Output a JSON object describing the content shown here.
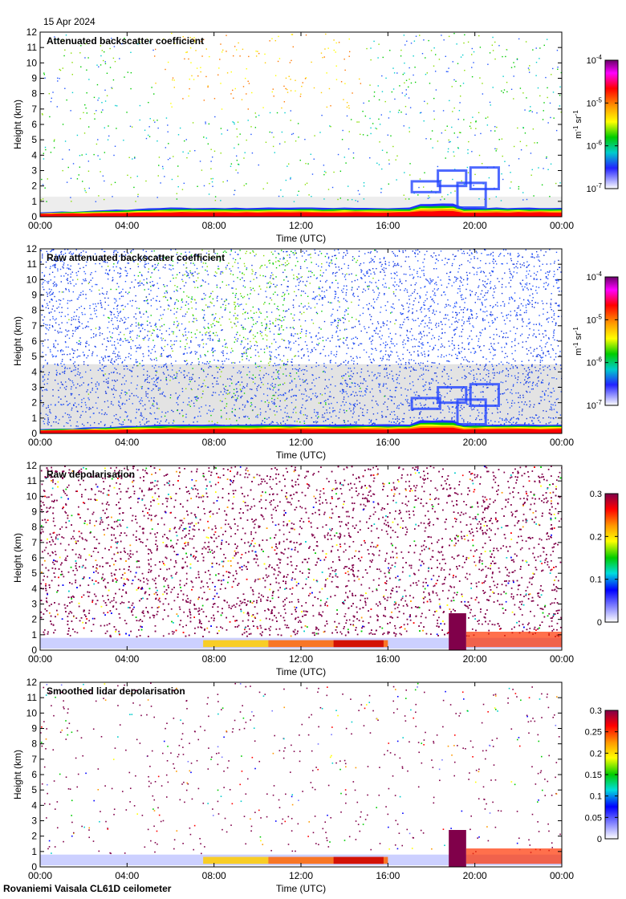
{
  "date": "15 Apr 2024",
  "footer": "Rovaniemi Vaisala CL61D ceilometer",
  "chart_data": [
    {
      "type": "heatmap",
      "title": "Attenuated backscatter coefficient",
      "xlabel": "Time (UTC)",
      "ylabel": "Height (km)",
      "xticks": [
        "00:00",
        "04:00",
        "08:00",
        "12:00",
        "16:00",
        "20:00",
        "00:00"
      ],
      "xlim": [
        0,
        24
      ],
      "ylim": [
        0,
        12
      ],
      "yticks": [
        0,
        1,
        2,
        3,
        4,
        5,
        6,
        7,
        8,
        9,
        10,
        11,
        12
      ],
      "colorbar": {
        "scale": "log",
        "unit_main": "m",
        "unit_sup1": "-1",
        "unit_mid": " sr",
        "unit_sup2": "-1",
        "ticks": [
          {
            "base": "10",
            "exp": "-4",
            "value": -4
          },
          {
            "base": "10",
            "exp": "-5",
            "value": -5
          },
          {
            "base": "10",
            "exp": "-6",
            "value": -6
          },
          {
            "base": "10",
            "exp": "-7",
            "value": -7
          }
        ],
        "range": [
          -7,
          -4
        ]
      }
    },
    {
      "type": "heatmap",
      "title": "Raw attenuated backscatter coefficient",
      "xlabel": "Time (UTC)",
      "ylabel": "Height (km)",
      "xticks": [
        "00:00",
        "04:00",
        "08:00",
        "12:00",
        "16:00",
        "20:00",
        "00:00"
      ],
      "xlim": [
        0,
        24
      ],
      "ylim": [
        0,
        12
      ],
      "yticks": [
        0,
        1,
        2,
        3,
        4,
        5,
        6,
        7,
        8,
        9,
        10,
        11,
        12
      ],
      "colorbar": {
        "scale": "log",
        "unit_main": "m",
        "unit_sup1": "-1",
        "unit_mid": " sr",
        "unit_sup2": "-1",
        "ticks": [
          {
            "base": "10",
            "exp": "-4",
            "value": -4
          },
          {
            "base": "10",
            "exp": "-5",
            "value": -5
          },
          {
            "base": "10",
            "exp": "-6",
            "value": -6
          },
          {
            "base": "10",
            "exp": "-7",
            "value": -7
          }
        ],
        "range": [
          -7,
          -4
        ]
      }
    },
    {
      "type": "heatmap",
      "title": "Raw depolarisation",
      "xlabel": "Time (UTC)",
      "ylabel": "Height (km)",
      "xticks": [
        "00:00",
        "04:00",
        "08:00",
        "12:00",
        "16:00",
        "20:00",
        "00:00"
      ],
      "xlim": [
        0,
        24
      ],
      "ylim": [
        0,
        12
      ],
      "yticks": [
        0,
        1,
        2,
        3,
        4,
        5,
        6,
        7,
        8,
        9,
        10,
        11,
        12
      ],
      "colorbar": {
        "scale": "linear",
        "ticks": [
          {
            "label": "0.3",
            "value": 0.3
          },
          {
            "label": "0.2",
            "value": 0.2
          },
          {
            "label": "0.1",
            "value": 0.1
          },
          {
            "label": "0",
            "value": 0
          }
        ],
        "range": [
          0,
          0.3
        ]
      }
    },
    {
      "type": "heatmap",
      "title": "Smoothed lidar depolarisation",
      "xlabel": "Time (UTC)",
      "ylabel": "Height (km)",
      "xticks": [
        "00:00",
        "04:00",
        "08:00",
        "12:00",
        "16:00",
        "20:00",
        "00:00"
      ],
      "xlim": [
        0,
        24
      ],
      "ylim": [
        0,
        12
      ],
      "yticks": [
        0,
        1,
        2,
        3,
        4,
        5,
        6,
        7,
        8,
        9,
        10,
        11,
        12
      ],
      "colorbar": {
        "scale": "linear",
        "ticks": [
          {
            "label": "0.3",
            "value": 0.3
          },
          {
            "label": "0.25",
            "value": 0.25
          },
          {
            "label": "0.2",
            "value": 0.2
          },
          {
            "label": "0.15",
            "value": 0.15
          },
          {
            "label": "0.1",
            "value": 0.1
          },
          {
            "label": "0.05",
            "value": 0.05
          },
          {
            "label": "0",
            "value": 0
          }
        ],
        "range": [
          0,
          0.3
        ]
      }
    }
  ]
}
